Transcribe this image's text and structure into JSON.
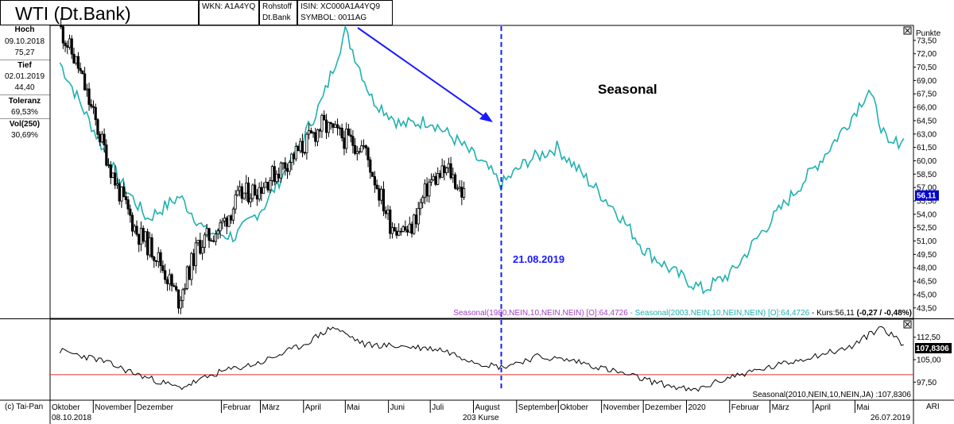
{
  "header": {
    "title": "WTI  (Dt.Bank)",
    "wkn": "WKN: A1A4YQ",
    "category_line1": "Rohstoff",
    "category_line2": "Dt.Bank",
    "isin": "ISIN: XC000A1A4YQ9",
    "symbol": "SYMBOL: 0011AG"
  },
  "sidebar": {
    "hoch_label": "Hoch",
    "hoch_date": "09.10.2018",
    "hoch_value": "75,27",
    "tief_label": "Tief",
    "tief_date": "02.01.2019",
    "tief_value": "44,40",
    "toleranz_label": "Toleranz",
    "toleranz_value": "69,53%",
    "vol_label": "Vol(250)",
    "vol_value": "30,69%"
  },
  "footer": {
    "copyright": "(c) Tai-Pan",
    "start_date": "08.10.2018",
    "count": "203 Kurse",
    "end_date": "26.07.2019",
    "right_label": "ARI"
  },
  "chart_data": [
    {
      "type": "line",
      "unit_label": "Punkte",
      "ylim": [
        42.5,
        75.0
      ],
      "y_ticks": [
        "73,50",
        "72,00",
        "70,50",
        "69,00",
        "67,50",
        "66,00",
        "64,50",
        "63,00",
        "61,50",
        "60,00",
        "58,50",
        "57,00",
        "55,50",
        "54,00",
        "52,50",
        "51,00",
        "49,50",
        "48,00",
        "46,50",
        "45,00",
        "43,50"
      ],
      "x_ticks": [
        "Oktober",
        "November",
        "Dezember",
        "Februar",
        "März",
        "April",
        "Mai",
        "Juni",
        "Juli",
        "August",
        "September",
        "Oktober",
        "November",
        "Dezember",
        "2020",
        "Februar",
        "März",
        "April",
        "Mai"
      ],
      "current_value": "56,11",
      "annotation_text": "Seasonal",
      "vline_date": "21.08.2019",
      "legend": {
        "purple": "Seasonal(1980,NEIN,10,NEIN,NEIN) [O]:64,4726",
        "sep": " - ",
        "cyan": "Seasonal(2003,NEIN,10,NEIN,NEIN) [O]:64,4726",
        "kurs": "Kurs:56,11",
        "change": "(-0,27 / -0,48%)"
      },
      "series": [
        {
          "name": "Kurs",
          "style": "candlestick",
          "color": "#000000",
          "x": [
            "2018-10-08",
            "2018-10-22",
            "2018-11-05",
            "2018-11-19",
            "2018-12-03",
            "2018-12-17",
            "2019-01-02",
            "2019-01-16",
            "2019-02-01",
            "2019-02-15",
            "2019-03-01",
            "2019-03-15",
            "2019-04-01",
            "2019-04-15",
            "2019-05-01",
            "2019-05-15",
            "2019-06-03",
            "2019-06-17",
            "2019-07-01",
            "2019-07-15",
            "2019-07-26"
          ],
          "values": [
            75.2,
            70.5,
            63.5,
            57.0,
            52.0,
            49.5,
            44.4,
            50.5,
            52.5,
            56.0,
            57.0,
            59.0,
            61.5,
            64.0,
            62.5,
            61.5,
            53.0,
            52.0,
            57.5,
            59.0,
            56.1
          ]
        },
        {
          "name": "Seasonal(2003,NEIN,10,NEIN,NEIN)",
          "color": "#21b0b0",
          "x": [
            "2018-10-08",
            "2018-10-29",
            "2018-11-19",
            "2018-12-10",
            "2019-01-02",
            "2019-01-21",
            "2019-02-11",
            "2019-03-04",
            "2019-03-25",
            "2019-04-15",
            "2019-05-01",
            "2019-05-20",
            "2019-06-10",
            "2019-07-01",
            "2019-07-22",
            "2019-08-12",
            "2019-08-21",
            "2019-09-09",
            "2019-09-30",
            "2019-10-21",
            "2019-11-11",
            "2019-12-02",
            "2019-12-23",
            "2020-01-13",
            "2020-02-03",
            "2020-02-24",
            "2020-03-16",
            "2020-04-06",
            "2020-04-27",
            "2020-05-11",
            "2020-05-25",
            "2020-06-05"
          ],
          "values": [
            71.0,
            64.5,
            58.0,
            53.5,
            56.0,
            52.0,
            51.5,
            55.0,
            60.5,
            67.0,
            74.5,
            67.0,
            64.0,
            64.5,
            62.0,
            59.0,
            57.3,
            60.0,
            61.5,
            58.0,
            54.5,
            50.0,
            47.5,
            45.5,
            47.5,
            52.0,
            56.0,
            60.0,
            64.5,
            68.0,
            61.5,
            62.5
          ]
        }
      ]
    },
    {
      "type": "line",
      "ylim": [
        92.0,
        118.0
      ],
      "y_ticks": [
        "112,50",
        "105,00",
        "97,50"
      ],
      "current_value": "107,8306",
      "reference_value": 100.0,
      "legend": "Seasonal(2010,NEIN,10,NEIN,JA) :107,8306",
      "series": [
        {
          "name": "Seasonal(2010,NEIN,10,NEIN,JA)",
          "color": "#000000",
          "x": [
            "2018-10-08",
            "2018-11-05",
            "2018-12-03",
            "2019-01-02",
            "2019-02-01",
            "2019-03-01",
            "2019-04-01",
            "2019-04-22",
            "2019-05-15",
            "2019-06-10",
            "2019-07-08",
            "2019-08-05",
            "2019-08-21",
            "2019-09-16",
            "2019-10-14",
            "2019-11-11",
            "2019-12-09",
            "2020-01-06",
            "2020-02-03",
            "2020-03-02",
            "2020-03-30",
            "2020-04-27",
            "2020-05-20",
            "2020-06-05"
          ],
          "values": [
            108.0,
            105.0,
            100.0,
            95.5,
            101.0,
            104.0,
            110.0,
            116.0,
            110.0,
            109.5,
            108.5,
            104.0,
            102.5,
            106.0,
            104.5,
            101.0,
            97.5,
            94.5,
            99.5,
            102.5,
            106.0,
            109.0,
            116.0,
            110.0
          ]
        }
      ]
    }
  ],
  "colors": {
    "vline": "#1a1aff",
    "reference": "#dd3333",
    "legend_purple": "#a040c0",
    "legend_cyan": "#21b0b0",
    "value_box": "#0000cc"
  }
}
